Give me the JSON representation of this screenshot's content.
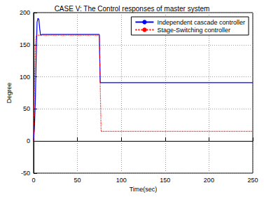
{
  "chart_data": {
    "type": "line",
    "title": "CASE V: The Control responses of master system",
    "x_label": "Time(sec)",
    "y_label": "Degree",
    "xlim": [
      0,
      250
    ],
    "xticks": [
      0,
      50,
      100,
      150,
      200,
      250
    ],
    "ylim": [
      -50,
      200
    ],
    "yticks": [
      -50,
      0,
      50,
      100,
      150,
      200
    ],
    "grid": true,
    "legend": "upper right",
    "series": [
      {
        "name": "Independent cascade controller",
        "color": "#0000ff",
        "line_style": "solid",
        "x": [
          0,
          1,
          2,
          3,
          4,
          5,
          6,
          7,
          8,
          10,
          75,
          76,
          250
        ],
        "values": [
          0,
          20,
          60,
          130,
          185,
          191,
          190,
          175,
          165,
          166,
          166,
          91,
          91
        ]
      },
      {
        "name": "Stage-Switching controller",
        "color": "#ff0000",
        "line_style": "dotted",
        "x": [
          0,
          1,
          2,
          3,
          75,
          77,
          250
        ],
        "values": [
          0,
          80,
          150,
          165,
          165,
          15,
          15
        ]
      }
    ]
  }
}
